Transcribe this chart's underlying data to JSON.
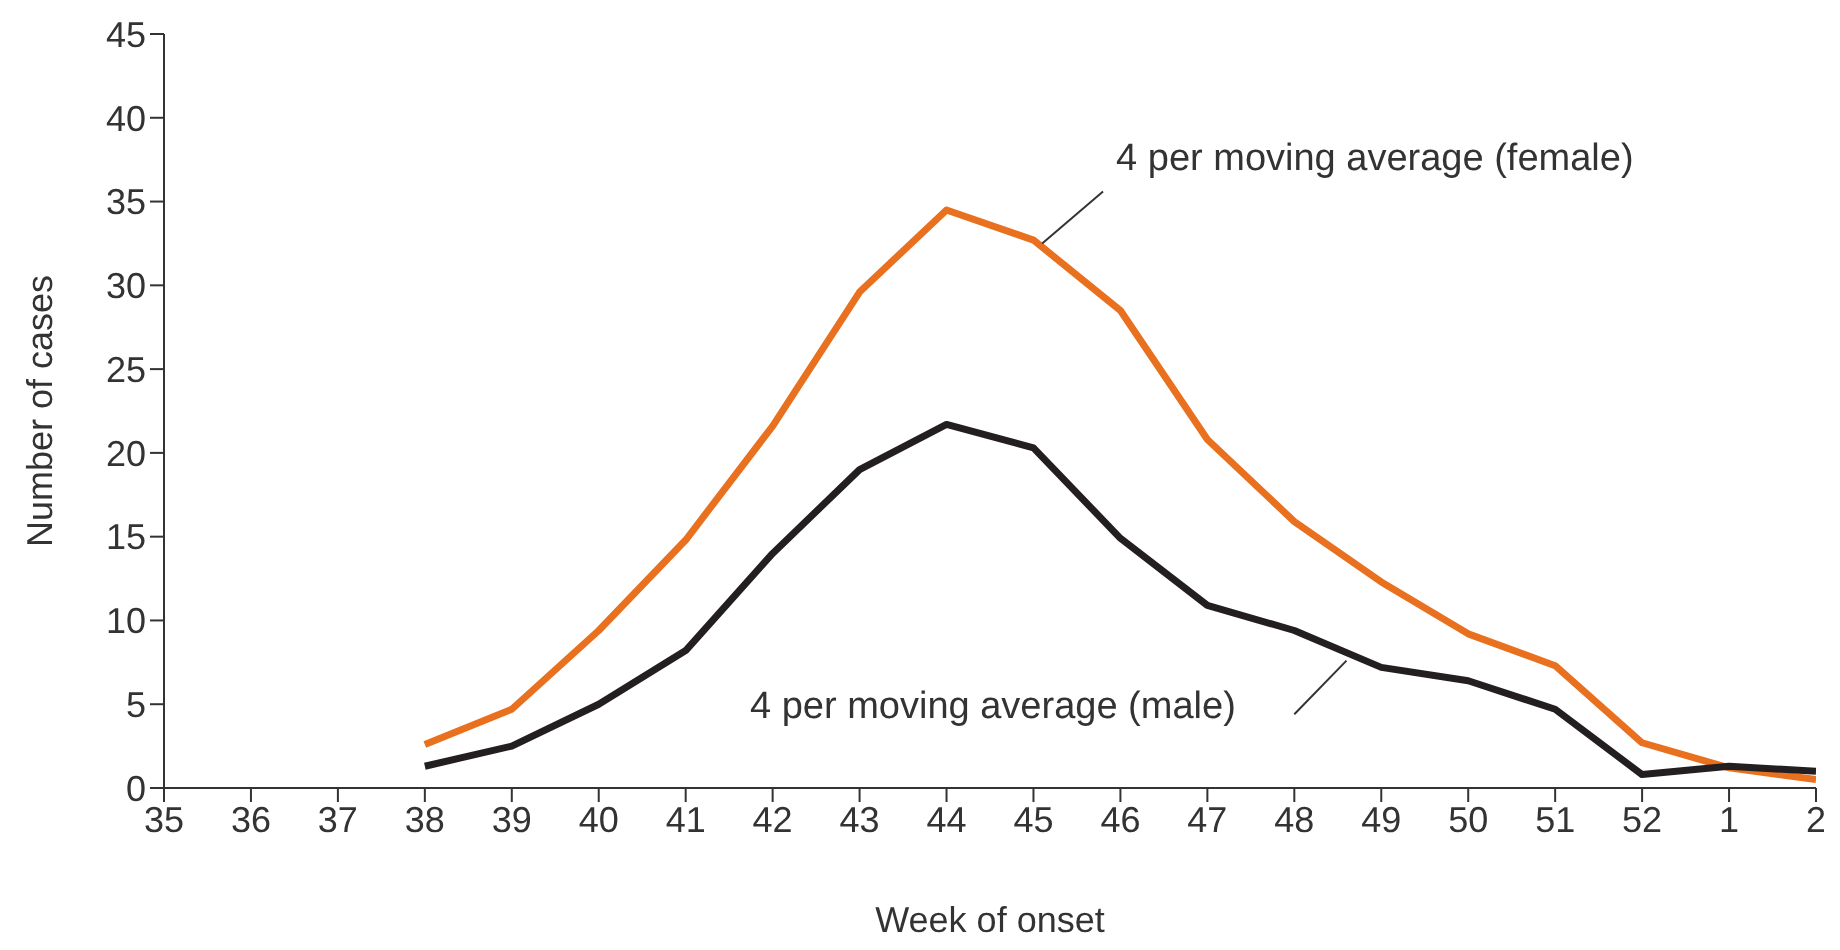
{
  "chart_data": {
    "type": "line",
    "xlabel": "Week of onset",
    "ylabel": "Number of cases",
    "categories": [
      "35",
      "36",
      "37",
      "38",
      "39",
      "40",
      "41",
      "42",
      "43",
      "44",
      "45",
      "46",
      "47",
      "48",
      "49",
      "50",
      "51",
      "52",
      "1",
      "2"
    ],
    "series": [
      {
        "name": "4 per moving average (female)",
        "color": "#e8701e",
        "values": [
          null,
          null,
          null,
          2.6,
          4.7,
          9.4,
          14.8,
          21.6,
          29.6,
          34.5,
          32.7,
          28.5,
          20.8,
          15.9,
          12.3,
          9.2,
          7.3,
          2.7,
          1.2,
          0.5
        ]
      },
      {
        "name": "4 per moving average (male)",
        "color": "#231f20",
        "values": [
          null,
          null,
          null,
          1.3,
          2.5,
          5.0,
          8.2,
          14.0,
          19.0,
          21.7,
          20.3,
          14.9,
          10.9,
          9.4,
          7.2,
          6.4,
          4.7,
          0.8,
          1.3,
          1.0
        ]
      }
    ],
    "ylim": [
      0,
      45
    ],
    "yticks": [
      0,
      5,
      10,
      15,
      20,
      25,
      30,
      35,
      40,
      45
    ],
    "marker": "none",
    "line_style": "solid"
  }
}
